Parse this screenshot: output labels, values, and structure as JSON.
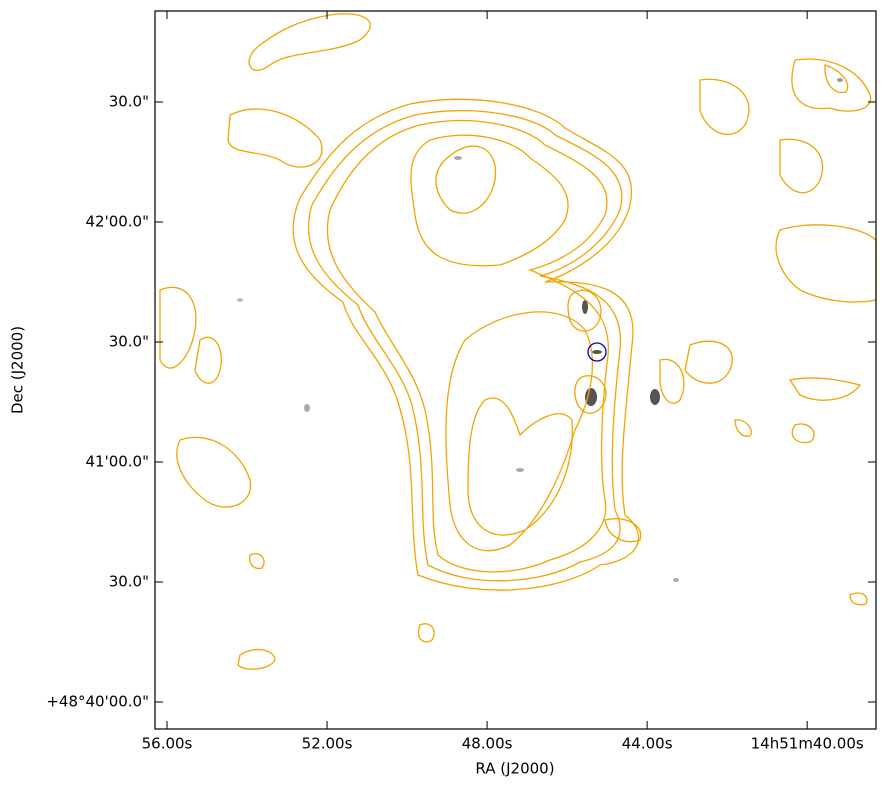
{
  "chart_data": {
    "type": "image",
    "xlabel": "RA (J2000)",
    "ylabel": "Dec (J2000)",
    "xlim": [
      56.3,
      38.28
    ],
    "ylim": [
      -6.75,
      172.75
    ],
    "xticks": [
      {
        "value": 56,
        "label": "56.00s"
      },
      {
        "value": 52,
        "label": "52.00s"
      },
      {
        "value": 48,
        "label": "48.00s"
      },
      {
        "value": 44,
        "label": "44.00s"
      },
      {
        "value": 40,
        "label": "14h51m40.00s"
      }
    ],
    "yticks": [
      {
        "value": 0,
        "label": "+48°40'00.0\""
      },
      {
        "value": 30,
        "label": "30.0\""
      },
      {
        "value": 60,
        "label": "41'00.0\""
      },
      {
        "value": 90,
        "label": "30.0\""
      },
      {
        "value": 120,
        "label": "42'00.0\""
      },
      {
        "value": 150,
        "label": "30.0\""
      }
    ]
  }
}
